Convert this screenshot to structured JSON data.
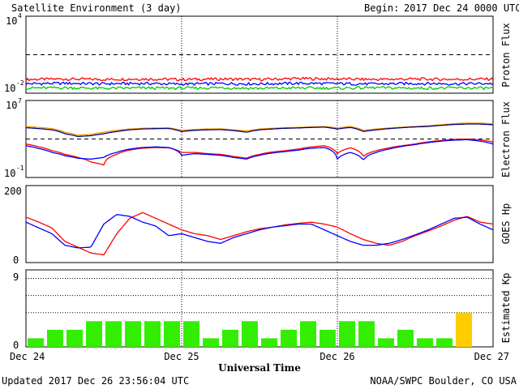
{
  "header": {
    "title": "Satellite Environment (3 day)",
    "begin_label": "Begin:",
    "begin_value": "2017 Dec 24 0000 UTC"
  },
  "footer": {
    "updated": "Updated 2017 Dec 26 23:56:04 UTC",
    "credit": "NOAA/SWPC Boulder, CO USA"
  },
  "chart_data": [
    {
      "type": "line",
      "ylabel": "Proton Flux",
      "scale": "log",
      "ylim": [
        0.01,
        10000
      ],
      "ytick_base": "10",
      "ytick_top_exp": "4",
      "ytick_bottom_exp": "-2",
      "threshold": 10,
      "colors": [
        "#ff0000",
        "#0000ff",
        "#00cc00"
      ],
      "series": [
        {
          "x": [
            0,
            6,
            12,
            18,
            24,
            30,
            36,
            42,
            48,
            54,
            60,
            66,
            72
          ],
          "values": [
            0.12,
            0.13,
            0.12,
            0.13,
            0.12,
            0.13,
            0.12,
            0.14,
            0.13,
            0.12,
            0.13,
            0.12,
            0.13
          ]
        },
        {
          "x": [
            0,
            6,
            12,
            18,
            24,
            30,
            36,
            42,
            48,
            54,
            60,
            66,
            72
          ],
          "values": [
            0.055,
            0.06,
            0.055,
            0.058,
            0.052,
            0.057,
            0.054,
            0.06,
            0.056,
            0.053,
            0.058,
            0.055,
            0.057
          ]
        },
        {
          "x": [
            0,
            6,
            12,
            18,
            24,
            30,
            36,
            42,
            48,
            54,
            60,
            66,
            72
          ],
          "values": [
            0.025,
            0.027,
            0.024,
            0.026,
            0.025,
            0.027,
            0.024,
            0.026,
            0.025,
            0.027,
            0.025,
            0.026,
            0.025
          ]
        }
      ]
    },
    {
      "type": "line",
      "ylabel": "Electron Flux",
      "scale": "log",
      "ylim": [
        0.1,
        10000000
      ],
      "ytick_base": "10",
      "ytick_top_exp": "7",
      "ytick_bottom_exp": "-1",
      "threshold": 1000,
      "colors": [
        "#ff9900",
        "#000080",
        "#ff0000",
        "#0000ff"
      ],
      "series": [
        {
          "x": [
            0,
            2,
            4,
            6,
            8,
            10,
            12,
            14,
            16,
            18,
            20,
            22,
            24,
            26,
            28,
            30,
            32,
            34,
            36,
            38,
            40,
            42,
            44,
            46,
            48,
            50,
            52,
            54,
            56,
            58,
            60,
            62,
            64,
            66,
            68,
            70,
            72
          ],
          "values": [
            20000,
            16000,
            12000,
            5000,
            2500,
            3000,
            5000,
            8000,
            11000,
            13000,
            14000,
            14500,
            8000,
            10000,
            11000,
            11500,
            9000,
            7000,
            11000,
            13000,
            15000,
            16000,
            18000,
            20000,
            14000,
            20000,
            8000,
            11000,
            14000,
            17000,
            20000,
            24000,
            30000,
            40000,
            45000,
            45000,
            38000
          ]
        },
        {
          "x": [
            0,
            2,
            4,
            6,
            8,
            10,
            12,
            14,
            16,
            18,
            20,
            22,
            24,
            26,
            28,
            30,
            32,
            34,
            36,
            38,
            40,
            42,
            44,
            46,
            48,
            50,
            52,
            54,
            56,
            58,
            60,
            62,
            64,
            66,
            68,
            70,
            72
          ],
          "values": [
            15000,
            12000,
            9000,
            3500,
            1800,
            2200,
            3500,
            6000,
            9000,
            11000,
            12000,
            12500,
            6000,
            8000,
            9000,
            9500,
            7500,
            5000,
            9000,
            11000,
            13000,
            14000,
            16000,
            17000,
            11000,
            16000,
            6000,
            9000,
            12000,
            15000,
            18000,
            20000,
            26000,
            32000,
            36000,
            36000,
            30000
          ]
        },
        {
          "x": [
            0,
            2,
            4,
            6,
            8,
            10,
            12,
            14,
            16,
            18,
            20,
            22,
            24,
            26,
            28,
            30,
            32,
            34,
            36,
            38,
            40,
            42,
            44,
            46,
            48,
            50,
            52,
            54,
            56,
            58,
            60,
            62,
            64,
            66,
            68,
            70,
            72
          ],
          "values": [
            300,
            150,
            60,
            25,
            12,
            4,
            2,
            25,
            70,
            110,
            130,
            120,
            40,
            40,
            30,
            25,
            15,
            10,
            25,
            45,
            60,
            90,
            150,
            200,
            30,
            120,
            15,
            60,
            120,
            200,
            300,
            500,
            700,
            900,
            1000,
            800,
            500
          ]
        },
        {
          "x": [
            0,
            2,
            4,
            6,
            8,
            10,
            12,
            14,
            16,
            18,
            20,
            22,
            24,
            26,
            28,
            30,
            32,
            34,
            36,
            38,
            40,
            42,
            44,
            46,
            48,
            50,
            52,
            54,
            56,
            58,
            60,
            62,
            64,
            66,
            68,
            70,
            72
          ],
          "values": [
            200,
            100,
            40,
            18,
            10,
            8,
            12,
            40,
            90,
            130,
            150,
            130,
            20,
            30,
            25,
            20,
            12,
            8,
            20,
            35,
            50,
            70,
            110,
            130,
            8,
            40,
            6,
            40,
            90,
            170,
            260,
            420,
            600,
            750,
            850,
            600,
            300
          ]
        }
      ]
    },
    {
      "type": "line",
      "ylabel": "GOES Hp",
      "ylim": [
        0,
        200
      ],
      "ticks": [
        "200",
        "0"
      ],
      "colors": [
        "#ff0000",
        "#0000ff"
      ],
      "series": [
        {
          "x": [
            0,
            2,
            4,
            6,
            8,
            10,
            12,
            14,
            16,
            18,
            20,
            22,
            24,
            26,
            28,
            30,
            32,
            34,
            36,
            38,
            40,
            42,
            44,
            46,
            48,
            50,
            52,
            54,
            56,
            58,
            60,
            62,
            64,
            66,
            68,
            70,
            72
          ],
          "values": [
            118,
            105,
            90,
            55,
            40,
            25,
            20,
            75,
            115,
            130,
            115,
            100,
            85,
            75,
            70,
            60,
            70,
            80,
            88,
            92,
            98,
            102,
            105,
            100,
            92,
            75,
            60,
            50,
            45,
            55,
            70,
            82,
            95,
            110,
            120,
            105,
            100
          ]
        },
        {
          "x": [
            0,
            2,
            4,
            6,
            8,
            10,
            12,
            14,
            16,
            18,
            20,
            22,
            24,
            26,
            28,
            30,
            32,
            34,
            36,
            38,
            40,
            42,
            44,
            46,
            48,
            50,
            52,
            54,
            56,
            58,
            60,
            62,
            64,
            66,
            68,
            70,
            72
          ],
          "values": [
            105,
            90,
            75,
            45,
            38,
            40,
            100,
            125,
            120,
            105,
            95,
            70,
            75,
            65,
            55,
            50,
            65,
            75,
            85,
            92,
            96,
            100,
            100,
            85,
            70,
            55,
            45,
            45,
            50,
            60,
            72,
            85,
            100,
            115,
            118,
            100,
            85
          ]
        }
      ]
    },
    {
      "type": "bar",
      "ylabel": "Estimated Kp",
      "ylim": [
        0,
        9
      ],
      "ticks": [
        "9",
        "0"
      ],
      "dotted_levels": [
        4,
        6,
        8
      ],
      "colors": {
        "normal": "#33ee00",
        "elevated": "#ffcc00"
      },
      "values": [
        1,
        2,
        2,
        3,
        3,
        3,
        3,
        3,
        3,
        1,
        2,
        3,
        1,
        2,
        3,
        2,
        3,
        3,
        1,
        2,
        1,
        1,
        4,
        0
      ],
      "highlight_min": 4
    }
  ],
  "xaxis": {
    "labels": [
      "Dec 24",
      "Dec 25",
      "Dec 26",
      "Dec 27"
    ],
    "label_hours": [
      0,
      24,
      48,
      72
    ],
    "day_lines": [
      24,
      48
    ],
    "xlim": [
      0,
      72
    ],
    "title": "Universal Time"
  }
}
